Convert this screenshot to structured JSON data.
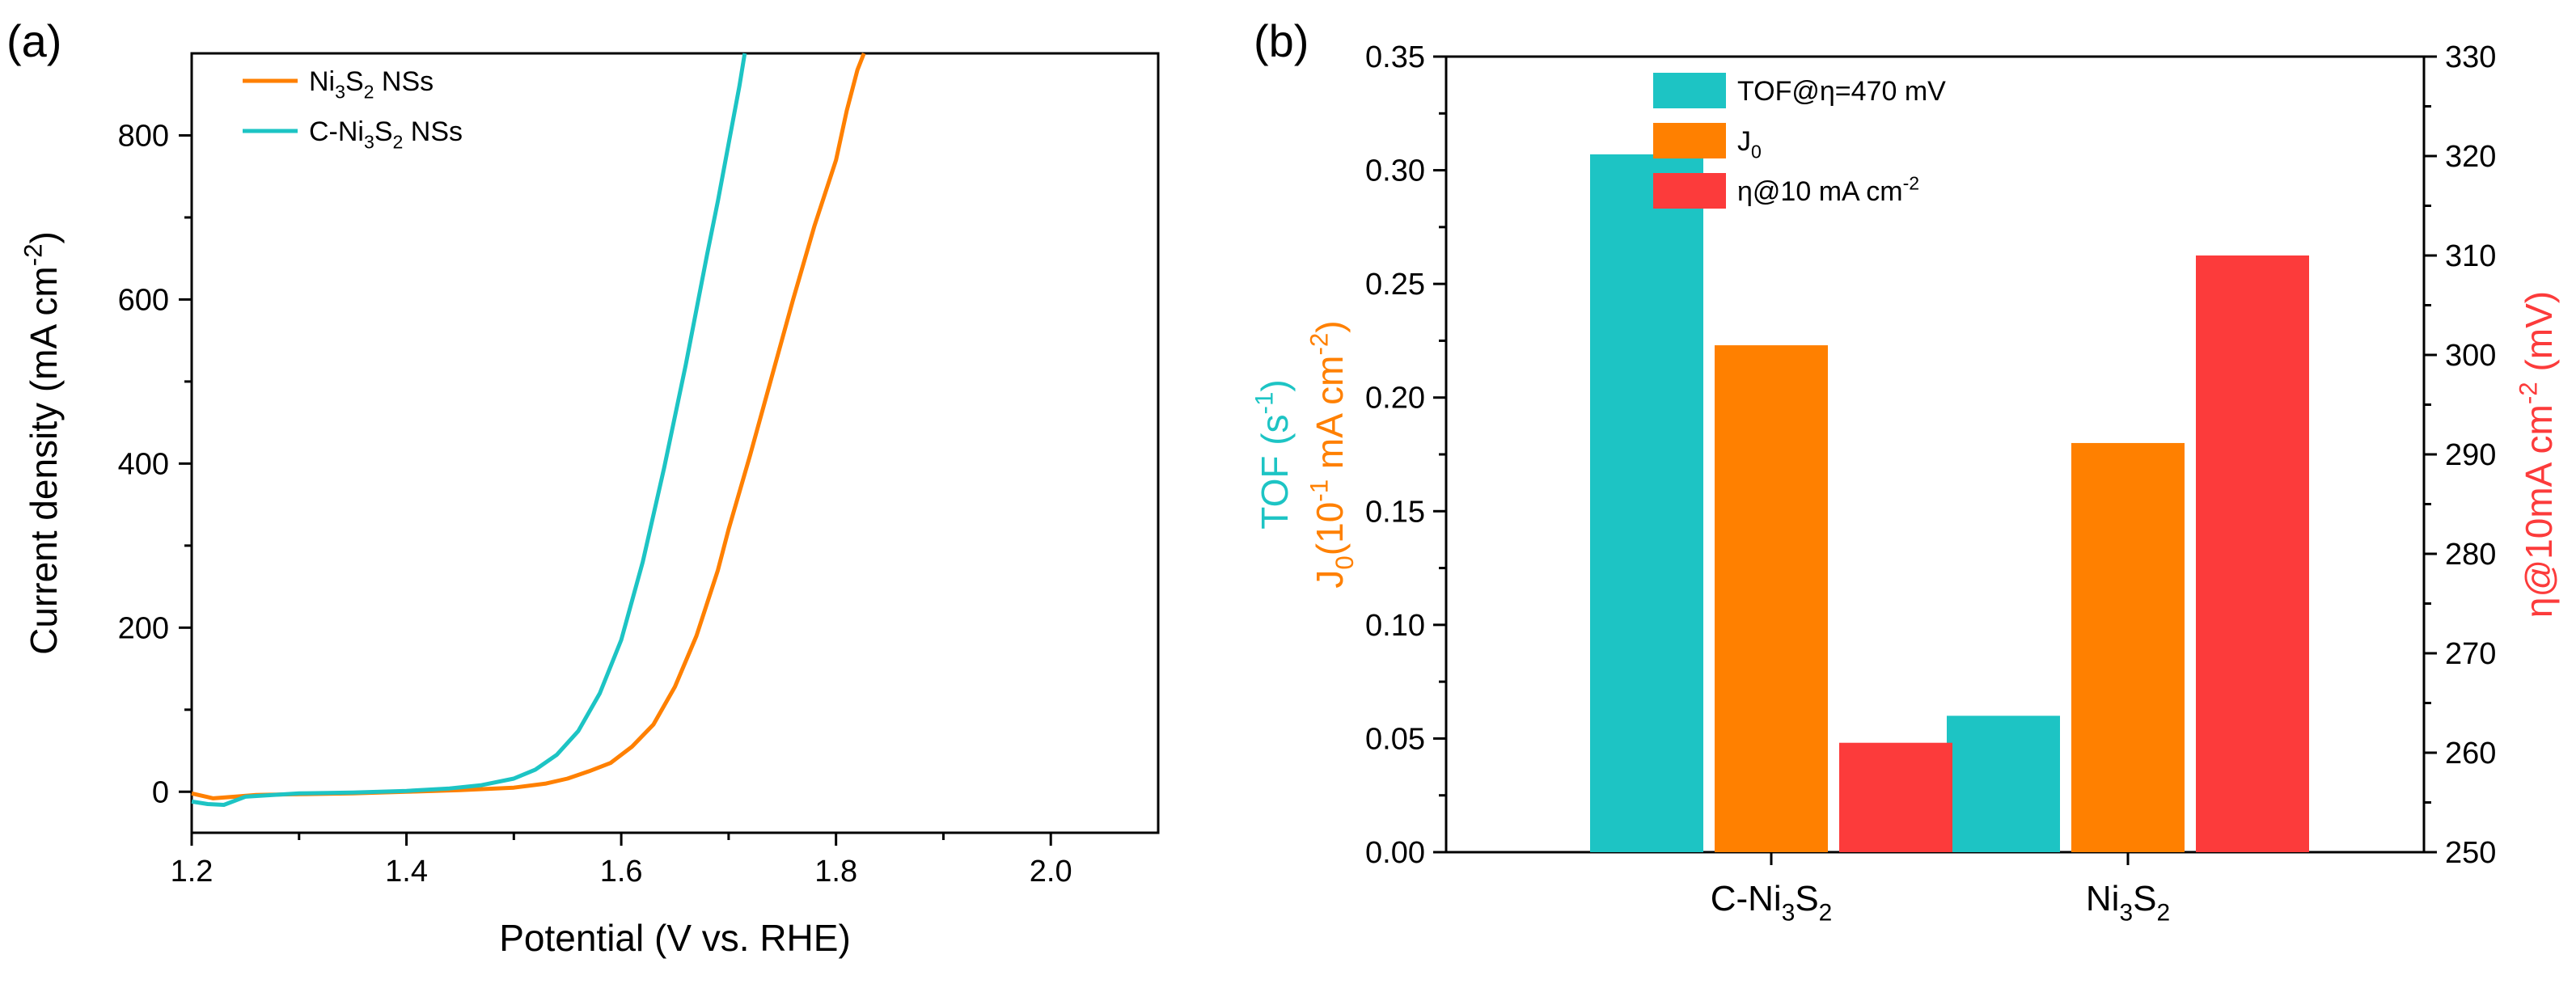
{
  "colors": {
    "teal": "#1DC4C4",
    "orange": "#FF8000",
    "red": "#FC3B3B",
    "axis": "#000000"
  },
  "chart_data": [
    {
      "panel": "(a)",
      "type": "line",
      "xlabel": "Potential (V vs. RHE)",
      "ylabel_parts": [
        "Current density (mA cm",
        "-2",
        ")"
      ],
      "xlim": [
        1.2,
        2.1
      ],
      "ylim": [
        -50,
        900
      ],
      "xticks": [
        1.2,
        1.4,
        1.6,
        1.8,
        2.0
      ],
      "xtick_labels": [
        "1.2",
        "1.4",
        "1.6",
        "1.8",
        "2.0"
      ],
      "yticks": [
        0,
        200,
        400,
        600,
        800
      ],
      "ytick_labels": [
        "0",
        "200",
        "400",
        "600",
        "800"
      ],
      "legend_position": "top-left",
      "series": [
        {
          "name": "Ni3S2 NSs",
          "label_parts": [
            [
              "Ni",
              "n"
            ],
            [
              "3",
              "sub"
            ],
            [
              "S",
              "n"
            ],
            [
              "2",
              "sub"
            ],
            [
              " NSs",
              "n"
            ]
          ],
          "color": "orange",
          "x": [
            1.2,
            1.22,
            1.24,
            1.26,
            1.3,
            1.35,
            1.4,
            1.45,
            1.5,
            1.53,
            1.55,
            1.57,
            1.59,
            1.61,
            1.63,
            1.65,
            1.67,
            1.69,
            1.7,
            1.72,
            1.74,
            1.76,
            1.78,
            1.8,
            1.81,
            1.82,
            1.826
          ],
          "y": [
            -2,
            -8,
            -6,
            -4,
            -3,
            -2,
            0,
            2,
            5,
            10,
            16,
            25,
            35,
            55,
            82,
            128,
            190,
            270,
            320,
            410,
            505,
            600,
            690,
            770,
            830,
            880,
            900
          ]
        },
        {
          "name": "C-Ni3S2 NSs",
          "label_parts": [
            [
              "C-Ni",
              "n"
            ],
            [
              "3",
              "sub"
            ],
            [
              "S",
              "n"
            ],
            [
              "2",
              "sub"
            ],
            [
              " NSs",
              "n"
            ]
          ],
          "color": "teal",
          "x": [
            1.2,
            1.215,
            1.23,
            1.25,
            1.3,
            1.35,
            1.4,
            1.44,
            1.47,
            1.5,
            1.52,
            1.54,
            1.56,
            1.58,
            1.6,
            1.62,
            1.64,
            1.66,
            1.68,
            1.69,
            1.7,
            1.71,
            1.715
          ],
          "y": [
            -12,
            -15,
            -16,
            -6,
            -2,
            -1,
            1,
            4,
            8,
            16,
            27,
            45,
            74,
            120,
            185,
            280,
            395,
            520,
            655,
            720,
            790,
            860,
            900
          ]
        }
      ]
    },
    {
      "panel": "(b)",
      "type": "bar",
      "categories": [
        "C-Ni3S2",
        "Ni3S2"
      ],
      "category_label_parts": [
        [
          [
            "C-Ni",
            "n"
          ],
          [
            "3",
            "sub"
          ],
          [
            "S",
            "n"
          ],
          [
            "2",
            "sub"
          ]
        ],
        [
          [
            "Ni",
            "n"
          ],
          [
            "3",
            "sub"
          ],
          [
            "S",
            "n"
          ],
          [
            "2",
            "sub"
          ]
        ]
      ],
      "left_axis": {
        "ylim": [
          0,
          0.35
        ],
        "ticks": [
          0.0,
          0.05,
          0.1,
          0.15,
          0.2,
          0.25,
          0.3,
          0.35
        ],
        "tick_labels": [
          "0.00",
          "0.05",
          "0.10",
          "0.15",
          "0.20",
          "0.25",
          "0.30",
          "0.35"
        ],
        "label_tof_parts": [
          [
            "TOF (s",
            "n"
          ],
          [
            "-1",
            "sup"
          ],
          [
            ")",
            "n"
          ]
        ],
        "label_j0_parts": [
          [
            "J",
            "n"
          ],
          [
            "0",
            "sub"
          ],
          [
            "(10",
            "n"
          ],
          [
            "-1",
            "sup"
          ],
          [
            " mA cm",
            "n"
          ],
          [
            "-2",
            "sup"
          ],
          [
            ")",
            "n"
          ]
        ]
      },
      "right_axis": {
        "ylim": [
          250,
          330
        ],
        "ticks": [
          250,
          260,
          270,
          280,
          290,
          300,
          310,
          320,
          330
        ],
        "tick_labels": [
          "250",
          "260",
          "270",
          "280",
          "290",
          "300",
          "310",
          "320",
          "330"
        ],
        "label_parts": [
          [
            "η@10mA cm",
            "n"
          ],
          [
            "-2",
            "sup"
          ],
          [
            " (mV)",
            "n"
          ]
        ]
      },
      "legend_position": "top-center",
      "series": [
        {
          "name": "TOF@η=470 mV",
          "label_parts": [
            [
              "TOF@η=470 mV",
              "n"
            ]
          ],
          "color": "teal",
          "axis": "left",
          "values": [
            0.307,
            0.06
          ]
        },
        {
          "name": "J0",
          "label_parts": [
            [
              "J",
              "n"
            ],
            [
              "0",
              "sub"
            ]
          ],
          "color": "orange",
          "axis": "left",
          "values": [
            0.223,
            0.18
          ]
        },
        {
          "name": "η@10 mA cm-2",
          "label_parts": [
            [
              "η@10 mA cm",
              "n"
            ],
            [
              "-2",
              "sup"
            ]
          ],
          "color": "red",
          "axis": "right",
          "values": [
            261,
            310
          ]
        }
      ]
    }
  ]
}
